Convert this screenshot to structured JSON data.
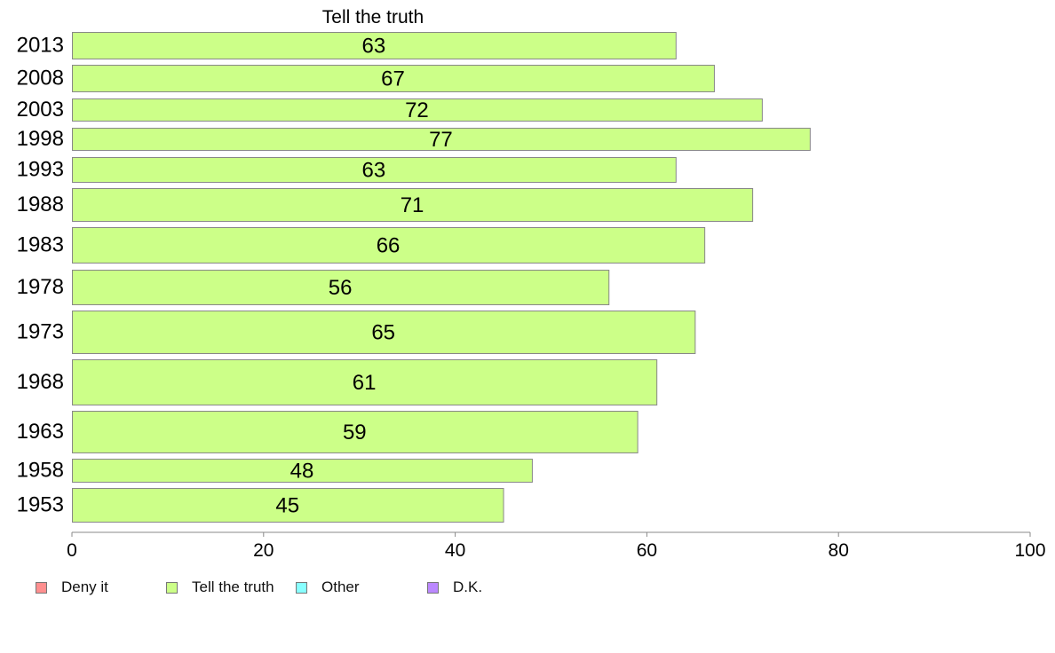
{
  "chart_data": {
    "type": "bar",
    "orientation": "horizontal",
    "title": "Tell the truth",
    "categories": [
      "2013",
      "2008",
      "2003",
      "1998",
      "1993",
      "1988",
      "1983",
      "1978",
      "1973",
      "1968",
      "1963",
      "1958",
      "1953"
    ],
    "series": [
      {
        "name": "Tell the truth",
        "values": [
          63,
          67,
          72,
          77,
          63,
          71,
          66,
          56,
          65,
          61,
          59,
          48,
          45
        ]
      }
    ],
    "data_labels": [
      "63",
      "67",
      "72",
      "77",
      "63",
      "71",
      "66",
      "56",
      "65",
      "61",
      "59",
      "48",
      "45"
    ],
    "x_ticks": [
      0,
      20,
      40,
      60,
      80,
      100
    ],
    "xlim": [
      0,
      100
    ],
    "grid": false,
    "legend": {
      "position": "bottom",
      "entries": [
        {
          "label": "Deny it",
          "color": "#ff8f8f"
        },
        {
          "label": "Tell the truth",
          "color": "#ccff88"
        },
        {
          "label": "Other",
          "color": "#88ffff"
        },
        {
          "label": "D.K.",
          "color": "#bb88ff"
        }
      ]
    },
    "colors": {
      "bar_fill": "#ccff88",
      "bar_stroke": "#888888"
    }
  }
}
